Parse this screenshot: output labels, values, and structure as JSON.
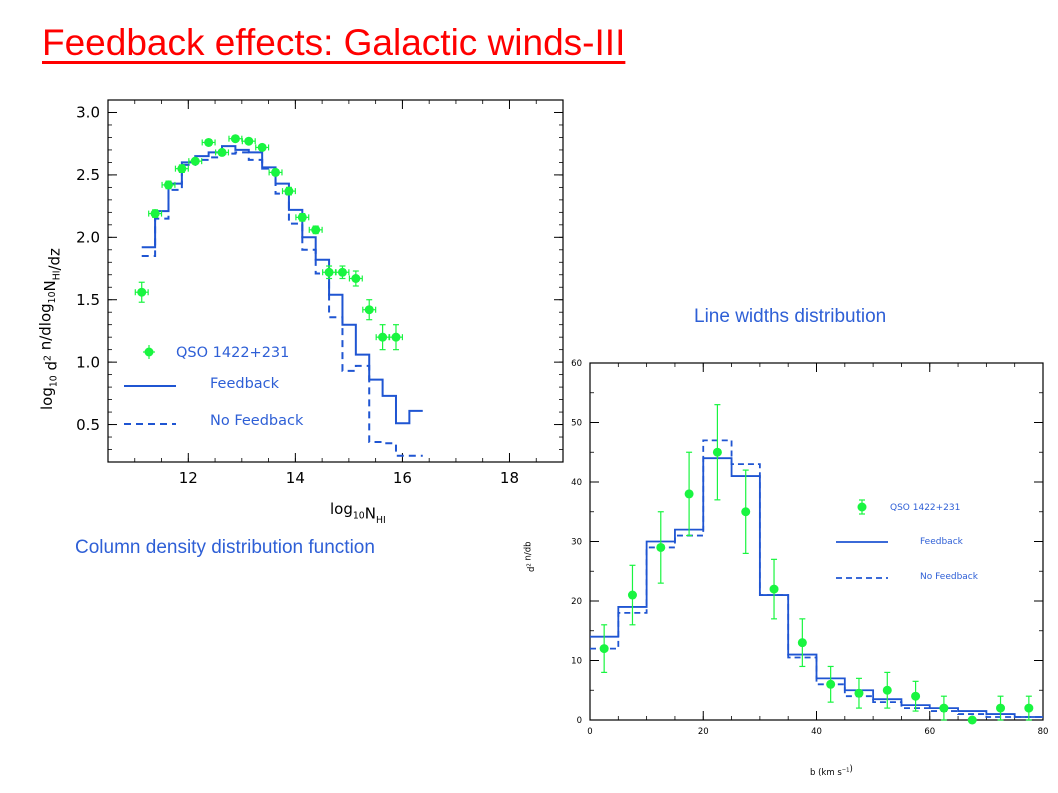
{
  "title": "Feedback effects: Galactic winds-III",
  "captions": {
    "left": "Column density distribution function",
    "right": "Line widths distribution"
  },
  "colors": {
    "title": "#ff0000",
    "caption": "#2e5fd6",
    "model": "#1f55d2",
    "data": "#19f540"
  },
  "chart_data": [
    {
      "type": "line",
      "xlabel": "log",
      "xlabel_sub": "10",
      "xlabel_main": "N",
      "xlabel_sub2": "HI",
      "ylabel_parts": [
        "log",
        "10",
        " d",
        "2",
        " n/dlog",
        "10",
        "N",
        "HI",
        "/dz"
      ],
      "xlim": [
        10.5,
        19
      ],
      "ylim": [
        0.2,
        3.1
      ],
      "xticks": [
        "12",
        "14",
        "16",
        "18"
      ],
      "yticks": [
        "0.5",
        "1.0",
        "1.5",
        "2.0",
        "2.5",
        "3.0"
      ],
      "legend": {
        "data": "QSO 1422+231",
        "feedback": "Feedback",
        "no_feedback": "No Feedback"
      },
      "points": [
        {
          "x": 11.13,
          "y": 1.56,
          "xerr": 0.12,
          "yerr": 0.08
        },
        {
          "x": 11.38,
          "y": 2.19,
          "xerr": 0.12,
          "yerr": 0.03
        },
        {
          "x": 11.63,
          "y": 2.42,
          "xerr": 0.12,
          "yerr": 0.03
        },
        {
          "x": 11.88,
          "y": 2.55,
          "xerr": 0.12,
          "yerr": 0.03
        },
        {
          "x": 12.13,
          "y": 2.61,
          "xerr": 0.12,
          "yerr": 0.02
        },
        {
          "x": 12.38,
          "y": 2.76,
          "xerr": 0.12,
          "yerr": 0.02
        },
        {
          "x": 12.63,
          "y": 2.68,
          "xerr": 0.12,
          "yerr": 0.02
        },
        {
          "x": 12.88,
          "y": 2.79,
          "xerr": 0.12,
          "yerr": 0.02
        },
        {
          "x": 13.13,
          "y": 2.77,
          "xerr": 0.12,
          "yerr": 0.02
        },
        {
          "x": 13.38,
          "y": 2.72,
          "xerr": 0.12,
          "yerr": 0.02
        },
        {
          "x": 13.63,
          "y": 2.52,
          "xerr": 0.12,
          "yerr": 0.02
        },
        {
          "x": 13.88,
          "y": 2.37,
          "xerr": 0.12,
          "yerr": 0.03
        },
        {
          "x": 14.13,
          "y": 2.16,
          "xerr": 0.12,
          "yerr": 0.03
        },
        {
          "x": 14.38,
          "y": 2.06,
          "xerr": 0.12,
          "yerr": 0.03
        },
        {
          "x": 14.63,
          "y": 1.72,
          "xerr": 0.12,
          "yerr": 0.05
        },
        {
          "x": 14.88,
          "y": 1.72,
          "xerr": 0.12,
          "yerr": 0.05
        },
        {
          "x": 15.13,
          "y": 1.67,
          "xerr": 0.12,
          "yerr": 0.06
        },
        {
          "x": 15.38,
          "y": 1.42,
          "xerr": 0.12,
          "yerr": 0.08
        },
        {
          "x": 15.63,
          "y": 1.2,
          "xerr": 0.12,
          "yerr": 0.1
        },
        {
          "x": 15.88,
          "y": 1.2,
          "xerr": 0.12,
          "yerr": 0.1
        }
      ],
      "series": [
        {
          "name": "Feedback",
          "style": "solid",
          "edges": [
            11.13,
            11.38,
            11.63,
            11.88,
            12.13,
            12.38,
            12.63,
            12.88,
            13.13,
            13.38,
            13.63,
            13.88,
            14.13,
            14.38,
            14.63,
            14.88,
            15.13,
            15.38,
            15.63,
            15.88,
            16.13,
            16.38
          ],
          "values": [
            1.92,
            2.21,
            2.43,
            2.6,
            2.65,
            2.68,
            2.73,
            2.7,
            2.68,
            2.56,
            2.43,
            2.22,
            2.0,
            1.82,
            1.54,
            1.3,
            1.06,
            0.86,
            0.73,
            0.51,
            0.61
          ]
        },
        {
          "name": "No Feedback",
          "style": "dashed",
          "edges": [
            11.13,
            11.38,
            11.63,
            11.88,
            12.13,
            12.38,
            12.63,
            12.88,
            13.13,
            13.38,
            13.63,
            13.88,
            14.13,
            14.38,
            14.63,
            14.88,
            15.13,
            15.38,
            15.63,
            15.88,
            16.13,
            16.38
          ],
          "values": [
            1.85,
            2.15,
            2.38,
            2.58,
            2.62,
            2.64,
            2.67,
            2.68,
            2.62,
            2.55,
            2.35,
            2.11,
            1.9,
            1.71,
            1.36,
            0.93,
            0.97,
            0.36,
            0.35,
            0.25,
            0.25
          ]
        }
      ]
    },
    {
      "type": "line",
      "xlabel": "b (km s",
      "xlabel_sup": "−1",
      "xlabel_end": ")",
      "ylabel": "d",
      "ylabel_sup": "2",
      "ylabel_end": " n/db",
      "xlim": [
        0,
        80
      ],
      "ylim": [
        0,
        60
      ],
      "xticks": [
        "0",
        "20",
        "40",
        "60",
        "80"
      ],
      "yticks": [
        "0",
        "10",
        "20",
        "30",
        "40",
        "50",
        "60"
      ],
      "legend": {
        "data": "QSO 1422+231",
        "feedback": "Feedback",
        "no_feedback": "No Feedback"
      },
      "points": [
        {
          "x": 2.5,
          "y": 12,
          "yerr": 4
        },
        {
          "x": 7.5,
          "y": 21,
          "yerr": 5
        },
        {
          "x": 12.5,
          "y": 29,
          "yerr": 6
        },
        {
          "x": 17.5,
          "y": 38,
          "yerr": 7
        },
        {
          "x": 22.5,
          "y": 45,
          "yerr": 8
        },
        {
          "x": 27.5,
          "y": 35,
          "yerr": 7
        },
        {
          "x": 32.5,
          "y": 22,
          "yerr": 5
        },
        {
          "x": 37.5,
          "y": 13,
          "yerr": 4
        },
        {
          "x": 42.5,
          "y": 6,
          "yerr": 3
        },
        {
          "x": 47.5,
          "y": 4.5,
          "yerr": 2.5
        },
        {
          "x": 52.5,
          "y": 5,
          "yerr": 3
        },
        {
          "x": 57.5,
          "y": 4,
          "yerr": 2.5
        },
        {
          "x": 62.5,
          "y": 2,
          "yerr": 2
        },
        {
          "x": 67.5,
          "y": 0,
          "yerr": 0
        },
        {
          "x": 72.5,
          "y": 2,
          "yerr": 2
        },
        {
          "x": 77.5,
          "y": 2,
          "yerr": 2
        }
      ],
      "series": [
        {
          "name": "Feedback",
          "style": "solid",
          "edges": [
            0,
            5,
            10,
            15,
            20,
            25,
            30,
            35,
            40,
            45,
            50,
            55,
            60,
            65,
            70,
            75,
            80
          ],
          "values": [
            14,
            19,
            30,
            32,
            44,
            41,
            21,
            11,
            7,
            5,
            3.5,
            2.5,
            2,
            1.5,
            1,
            0.5
          ]
        },
        {
          "name": "No Feedback",
          "style": "dashed",
          "edges": [
            0,
            5,
            10,
            15,
            20,
            25,
            30,
            35,
            40,
            45,
            50,
            55,
            60,
            65,
            70,
            75,
            80
          ],
          "values": [
            12,
            18,
            29,
            31,
            47,
            43,
            21,
            10.5,
            6,
            4,
            3,
            2,
            1.5,
            1,
            0.5,
            0.5
          ]
        }
      ]
    }
  ]
}
